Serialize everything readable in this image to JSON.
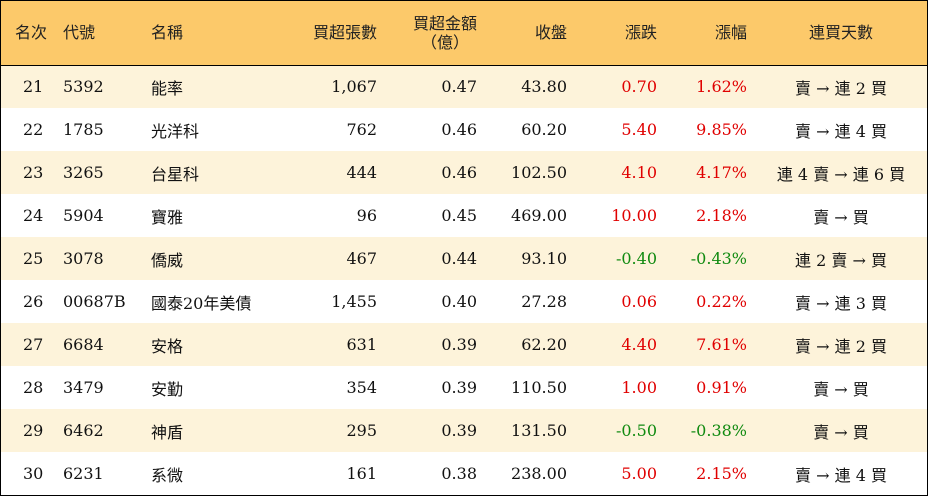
{
  "columns": {
    "rank": "名次",
    "code": "代號",
    "name": "名稱",
    "net_buy_shares": "買超張數",
    "net_buy_amount_line1": "買超金額",
    "net_buy_amount_line2": "（億）",
    "close": "收盤",
    "change": "漲跌",
    "change_pct": "漲幅",
    "consecutive_days": "連買天數"
  },
  "colors": {
    "header_bg": "#fcc96a",
    "stripe_bg": "#fdf3da",
    "up": "#e00000",
    "down": "#108a10"
  },
  "rows": [
    {
      "rank": "21",
      "code": "5392",
      "name": "能率",
      "shares": "1,067",
      "amount": "0.47",
      "close": "43.80",
      "change": "0.70",
      "pct": "1.62%",
      "trend": "up",
      "days": "賣 → 連 2 買"
    },
    {
      "rank": "22",
      "code": "1785",
      "name": "光洋科",
      "shares": "762",
      "amount": "0.46",
      "close": "60.20",
      "change": "5.40",
      "pct": "9.85%",
      "trend": "up",
      "days": "賣 → 連 4 買"
    },
    {
      "rank": "23",
      "code": "3265",
      "name": "台星科",
      "shares": "444",
      "amount": "0.46",
      "close": "102.50",
      "change": "4.10",
      "pct": "4.17%",
      "trend": "up",
      "days": "連 4 賣 → 連 6 買"
    },
    {
      "rank": "24",
      "code": "5904",
      "name": "寶雅",
      "shares": "96",
      "amount": "0.45",
      "close": "469.00",
      "change": "10.00",
      "pct": "2.18%",
      "trend": "up",
      "days": "賣 → 買"
    },
    {
      "rank": "25",
      "code": "3078",
      "name": "僑威",
      "shares": "467",
      "amount": "0.44",
      "close": "93.10",
      "change": "-0.40",
      "pct": "-0.43%",
      "trend": "down",
      "days": "連 2 賣 → 買"
    },
    {
      "rank": "26",
      "code": "00687B",
      "name": "國泰20年美債",
      "shares": "1,455",
      "amount": "0.40",
      "close": "27.28",
      "change": "0.06",
      "pct": "0.22%",
      "trend": "up",
      "days": "賣 → 連 3 買"
    },
    {
      "rank": "27",
      "code": "6684",
      "name": "安格",
      "shares": "631",
      "amount": "0.39",
      "close": "62.20",
      "change": "4.40",
      "pct": "7.61%",
      "trend": "up",
      "days": "賣 → 連 2 買"
    },
    {
      "rank": "28",
      "code": "3479",
      "name": "安勤",
      "shares": "354",
      "amount": "0.39",
      "close": "110.50",
      "change": "1.00",
      "pct": "0.91%",
      "trend": "up",
      "days": "賣 → 買"
    },
    {
      "rank": "29",
      "code": "6462",
      "name": "神盾",
      "shares": "295",
      "amount": "0.39",
      "close": "131.50",
      "change": "-0.50",
      "pct": "-0.38%",
      "trend": "down",
      "days": "賣 → 買"
    },
    {
      "rank": "30",
      "code": "6231",
      "name": "系微",
      "shares": "161",
      "amount": "0.38",
      "close": "238.00",
      "change": "5.00",
      "pct": "2.15%",
      "trend": "up",
      "days": "賣 → 連 4 買"
    }
  ]
}
